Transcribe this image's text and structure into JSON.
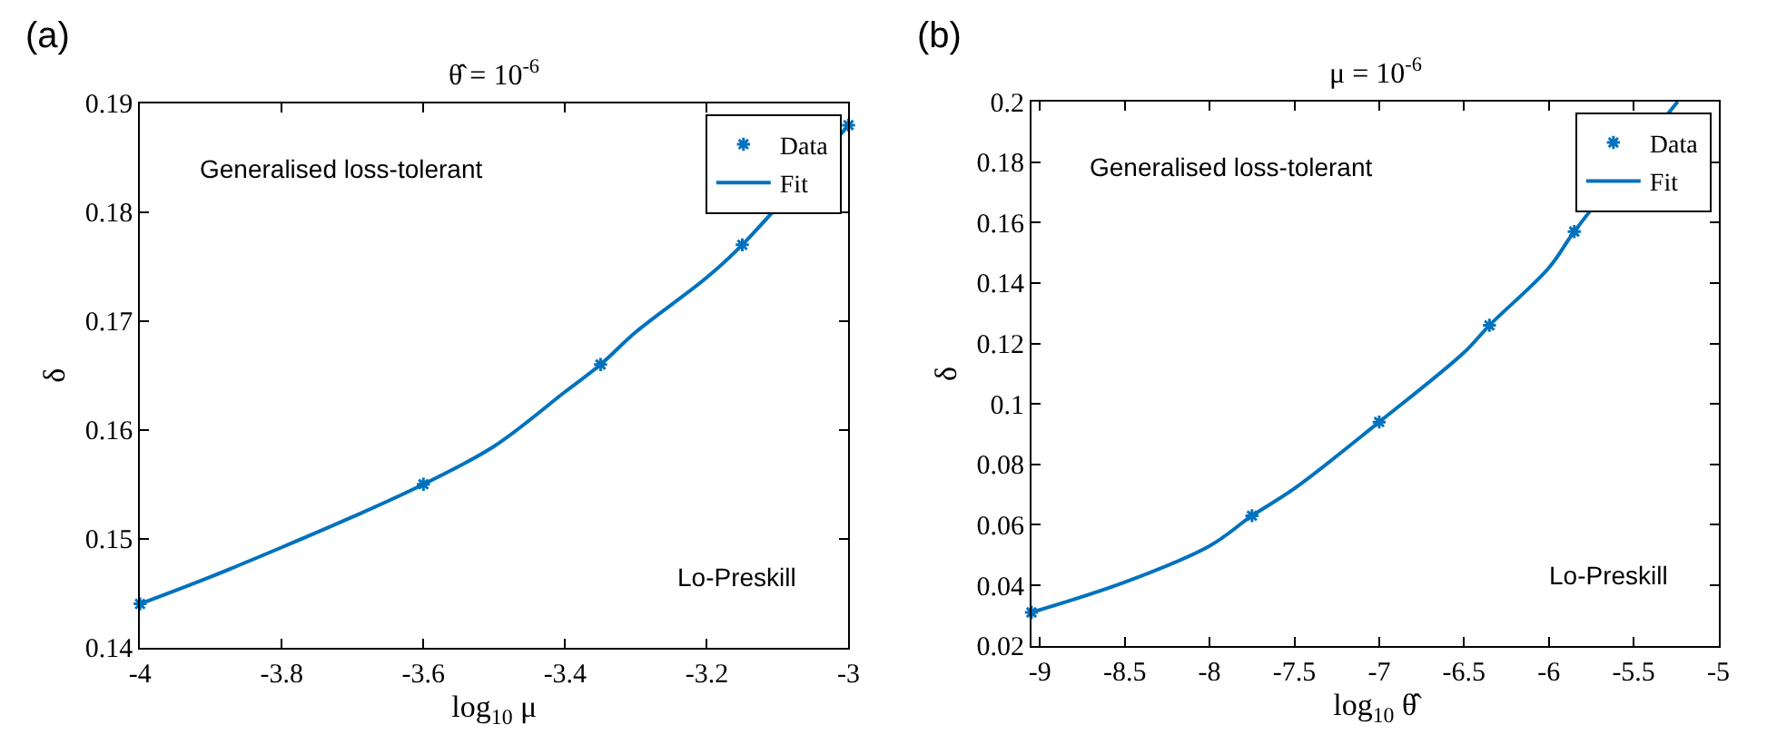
{
  "chart_data": [
    {
      "type": "line",
      "title": "θ̂ = 10$^{-6}$",
      "xlabel": "log$_{10}$ μ",
      "ylabel": "δ",
      "annotations": [
        "(a)",
        "Generalised loss-tolerant",
        "Lo-Preskill"
      ],
      "series": [
        {
          "name": "Data",
          "type": "scatter",
          "marker": "cross",
          "color": "#0072bd",
          "x": [
            -4,
            -3.6,
            -3.35,
            -3.15,
            -3
          ],
          "values": [
            0.144,
            0.155,
            0.166,
            0.177,
            0.188
          ]
        },
        {
          "name": "Fit",
          "type": "line",
          "marker": "none",
          "line_style": "solid",
          "color": "#0072bd",
          "x": [
            -4,
            -3.9,
            -3.8,
            -3.7,
            -3.6,
            -3.5,
            -3.4,
            -3.35,
            -3.3,
            -3.2,
            -3.15,
            -3
          ],
          "values": [
            0.144,
            0.1465,
            0.1492,
            0.152,
            0.155,
            0.1585,
            0.1635,
            0.166,
            0.169,
            0.174,
            0.177,
            0.188
          ]
        }
      ],
      "xlim": [
        -4,
        -3
      ],
      "xticks": [
        -4,
        -3.8,
        -3.6,
        -3.4,
        -3.2,
        -3
      ],
      "ylim": [
        0.14,
        0.19
      ],
      "yticks": [
        0.14,
        0.15,
        0.16,
        0.17,
        0.18,
        0.19
      ],
      "legend": "top right"
    },
    {
      "type": "line",
      "title": "μ = 10$^{-6}$",
      "xlabel": "log$_{10}$ θ̂",
      "ylabel": "δ",
      "annotations": [
        "(b)",
        "Generalised loss-tolerant",
        "Lo-Preskill"
      ],
      "series": [
        {
          "name": "Data",
          "type": "scatter",
          "marker": "cross",
          "color": "#0072bd",
          "x": [
            -9.05,
            -7.75,
            -7,
            -6.35,
            -5.85
          ],
          "values": [
            0.031,
            0.063,
            0.094,
            0.126,
            0.157
          ]
        },
        {
          "name": "Fit",
          "type": "line",
          "marker": "none",
          "line_style": "solid",
          "color": "#0072bd",
          "x": [
            -9.05,
            -8.5,
            -8,
            -7.75,
            -7.5,
            -7,
            -6.5,
            -6.35,
            -6,
            -5.85,
            -5.24
          ],
          "values": [
            0.031,
            0.041,
            0.053,
            0.063,
            0.072,
            0.094,
            0.117,
            0.126,
            0.145,
            0.157,
            0.2
          ]
        }
      ],
      "xlim": [
        -9.05,
        -5
      ],
      "xticks": [
        -9,
        -8.5,
        -8,
        -7.5,
        -7,
        -6.5,
        -6,
        -5.5,
        -5
      ],
      "ylim": [
        0.02,
        0.2
      ],
      "yticks": [
        0.02,
        0.04,
        0.06,
        0.08,
        0.1,
        0.12,
        0.14,
        0.16,
        0.18,
        0.2
      ],
      "legend": "top right"
    }
  ]
}
